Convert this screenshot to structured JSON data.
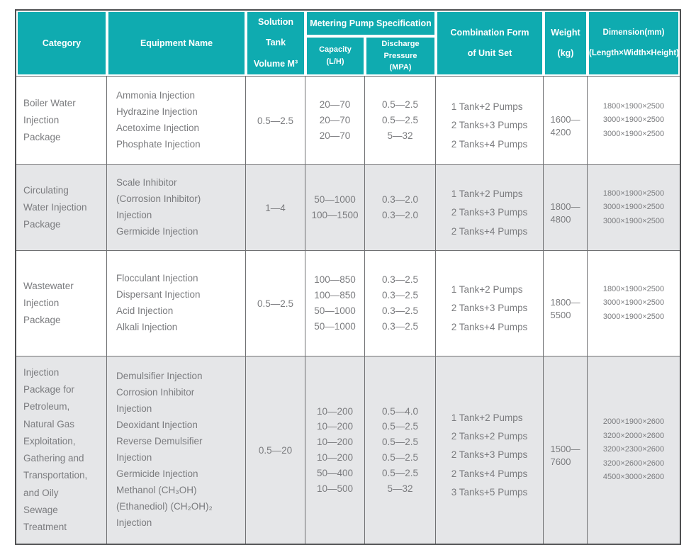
{
  "colors": {
    "header_bg": "#0fabb0",
    "header_text": "#ffffff",
    "body_text": "#7b7c7f",
    "shaded_row_bg": "#e5e6e8",
    "outer_border": "#4e4f51",
    "grid_line": "#6f7072"
  },
  "header": {
    "category": "Category",
    "equipment": "Equipment Name",
    "solution_tank": [
      "Solution Tank",
      "Volume M³"
    ],
    "metering": "Metering Pump Specification",
    "capacity": [
      "Capacity",
      "(L/H)"
    ],
    "discharge_pressure": [
      "Discharge Pressure",
      "(MPA)"
    ],
    "combination": [
      "Combination Form",
      "of Unit Set"
    ],
    "weight": [
      "Weight",
      "(kg)"
    ],
    "dimension": [
      "Dimension(mm)",
      "(Length×Width×Height)"
    ]
  },
  "rows": [
    {
      "shaded": false,
      "category": [
        "Boiler Water",
        "Injection",
        "Package"
      ],
      "equipment": [
        "Ammonia Injection",
        "Hydrazine Injection",
        "Acetoxime Injection",
        "Phosphate Injection"
      ],
      "tank": "0.5—2.5",
      "capacity": [
        "20—70",
        "20—70",
        "20—70"
      ],
      "pressure": [
        "0.5—2.5",
        "0.5—2.5",
        "5—32"
      ],
      "combination": [
        "1 Tank+2 Pumps",
        "2 Tanks+3 Pumps",
        "2 Tanks+4 Pumps"
      ],
      "weight": [
        "1600—",
        "4200"
      ],
      "dimension": [
        "1800×1900×2500",
        "3000×1900×2500",
        "3000×1900×2500"
      ]
    },
    {
      "shaded": true,
      "category": [
        "Circulating",
        "Water Injection",
        " Package"
      ],
      "equipment": [
        "Scale Inhibitor",
        " (Corrosion Inhibitor)",
        " Injection",
        "Germicide Injection"
      ],
      "tank": "1—4",
      "capacity": [
        "50—1000",
        "100—1500"
      ],
      "pressure": [
        "0.3—2.0",
        "0.3—2.0"
      ],
      "combination": [
        "1 Tank+2 Pumps",
        "2 Tanks+3 Pumps",
        "2 Tanks+4 Pumps"
      ],
      "weight": [
        "1800—",
        "4800"
      ],
      "dimension": [
        "1800×1900×2500",
        "3000×1900×2500",
        "3000×1900×2500"
      ]
    },
    {
      "shaded": false,
      "category": [
        "Wastewater",
        "Injection",
        "Package"
      ],
      "equipment": [
        "Flocculant Injection",
        "Dispersant Injection",
        "Acid Injection",
        "Alkali Injection"
      ],
      "tank": "0.5—2.5",
      "capacity": [
        "100—850",
        "100—850",
        "50—1000",
        "50—1000"
      ],
      "pressure": [
        "0.3—2.5",
        "0.3—2.5",
        "0.3—2.5",
        "0.3—2.5"
      ],
      "combination": [
        "1 Tank+2 Pumps",
        "2 Tanks+3 Pumps",
        "2 Tanks+4 Pumps"
      ],
      "weight": [
        "1800—",
        "5500"
      ],
      "dimension": [
        "1800×1900×2500",
        "3000×1900×2500",
        "3000×1900×2500"
      ]
    },
    {
      "shaded": true,
      "category": [
        "Injection",
        "Package for",
        "Petroleum,",
        "Natural Gas",
        "Exploitation,",
        "Gathering and",
        "Transportation,",
        "and Oily",
        "Sewage",
        "Treatment"
      ],
      "equipment": [
        "Demulsifier Injection",
        "Corrosion Inhibitor",
        "Injection",
        "Deoxidant Injection",
        "Reverse Demulsifier",
        "Injection",
        "Germicide Injection",
        "Methanol  (CH₃OH)",
        "(Ethanediol) (CH₂OH)₂",
        "Injection"
      ],
      "tank": "0.5—20",
      "capacity": [
        "10—200",
        "10—200",
        "10—200",
        "10—200",
        "50—400",
        "10—500"
      ],
      "pressure": [
        "0.5—4.0",
        "0.5—2.5",
        "0.5—2.5",
        "0.5—2.5",
        "0.5—2.5",
        "5—32"
      ],
      "combination": [
        "1 Tank+2 Pumps",
        "2 Tanks+2 Pumps",
        "2 Tanks+3 Pumps",
        "2 Tanks+4 Pumps",
        "3 Tanks+5 Pumps"
      ],
      "weight": [
        "1500—",
        "7600"
      ],
      "dimension": [
        "2000×1900×2600",
        "3200×2000×2600",
        "3200×2300×2600",
        "3200×2600×2600",
        "4500×3000×2600"
      ]
    }
  ]
}
